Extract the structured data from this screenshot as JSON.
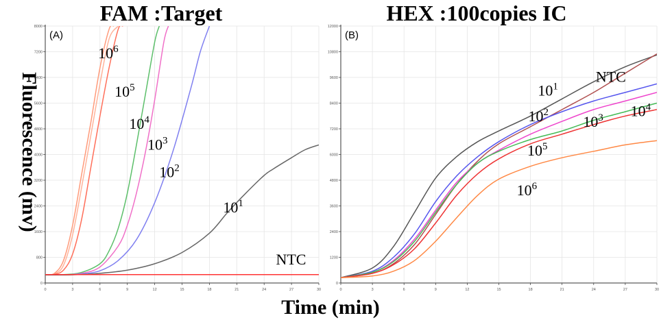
{
  "chart_data": [
    {
      "type": "line",
      "panel_label": "(A)",
      "title": "FAM :Target",
      "xlabel": "Time (min)",
      "ylabel": "Fluorescence (mv)",
      "xlim": [
        0,
        30
      ],
      "ylim": [
        0,
        8000
      ],
      "x_ticks": [
        0,
        3,
        6,
        9,
        12,
        15,
        18,
        21,
        24,
        27,
        30
      ],
      "y_ticks": [
        0,
        800,
        1600,
        2400,
        3200,
        4000,
        4800,
        5600,
        6400,
        7200,
        8000
      ],
      "grid": true,
      "series": [
        {
          "name": "10^6",
          "color": "#ff9a7a",
          "x": [
            0,
            1,
            2,
            3,
            4,
            5,
            6,
            7,
            7.5
          ],
          "y": [
            250,
            300,
            700,
            1800,
            3400,
            5000,
            6700,
            7900,
            8000
          ]
        },
        {
          "name": "10^6",
          "color": "#ffb39a",
          "x": [
            0,
            1,
            2,
            3,
            4,
            5,
            6,
            7,
            8
          ],
          "y": [
            250,
            280,
            550,
            1500,
            3000,
            4600,
            6200,
            7600,
            8000
          ]
        },
        {
          "name": "10^5",
          "color": "#ff6f5a",
          "x": [
            0,
            1,
            2,
            3,
            4,
            5,
            6,
            7,
            8,
            8.5
          ],
          "y": [
            250,
            270,
            400,
            900,
            2000,
            3600,
            5200,
            6700,
            7900,
            8000
          ]
        },
        {
          "name": "10^4",
          "color": "#5cbf6a",
          "x": [
            0,
            2,
            4,
            6,
            7,
            8,
            9,
            10,
            11,
            12,
            12.5
          ],
          "y": [
            250,
            260,
            330,
            600,
            1000,
            1700,
            2800,
            4300,
            5900,
            7500,
            8000
          ]
        },
        {
          "name": "10^3",
          "color": "#f070c8",
          "x": [
            0,
            2,
            4,
            6,
            8,
            9,
            10,
            11,
            12,
            13,
            13.5
          ],
          "y": [
            250,
            255,
            300,
            500,
            1150,
            1800,
            2800,
            4100,
            5700,
            7500,
            8000
          ]
        },
        {
          "name": "10^2",
          "color": "#8080f0",
          "x": [
            0,
            2,
            4,
            6,
            8,
            10,
            12,
            14,
            16,
            17,
            18
          ],
          "y": [
            250,
            255,
            280,
            380,
            700,
            1350,
            2500,
            4100,
            6100,
            7200,
            8000
          ]
        },
        {
          "name": "10^1",
          "color": "#666666",
          "x": [
            0,
            3,
            6,
            9,
            12,
            15,
            18,
            20,
            22,
            24,
            25,
            27,
            28.5,
            30
          ],
          "y": [
            250,
            255,
            300,
            400,
            600,
            950,
            1550,
            2200,
            2800,
            3350,
            3550,
            3900,
            4150,
            4300
          ]
        },
        {
          "name": "NTC",
          "color": "#ff3333",
          "x": [
            0,
            30
          ],
          "y": [
            260,
            260
          ]
        }
      ],
      "series_labels": [
        {
          "base": "10",
          "exp": "6",
          "x": 5.8,
          "y": 7000
        },
        {
          "base": "10",
          "exp": "5",
          "x": 7.6,
          "y": 5800
        },
        {
          "base": "10",
          "exp": "4",
          "x": 9.2,
          "y": 4800
        },
        {
          "base": "10",
          "exp": "3",
          "x": 11.2,
          "y": 4150
        },
        {
          "base": "10",
          "exp": "2",
          "x": 12.5,
          "y": 3300
        },
        {
          "base": "10",
          "exp": "1",
          "x": 19.5,
          "y": 2200
        },
        {
          "base": "NTC",
          "exp": "",
          "x": 25.3,
          "y": 580
        }
      ]
    },
    {
      "type": "line",
      "panel_label": "(B)",
      "title": "HEX :100copies IC",
      "xlabel": "Time (min)",
      "ylabel": "Fluorescence (mv)",
      "xlim": [
        0,
        30
      ],
      "ylim": [
        0,
        12000
      ],
      "x_ticks": [
        0,
        3,
        6,
        9,
        12,
        15,
        18,
        21,
        24,
        27,
        30
      ],
      "y_ticks": [
        0,
        1200,
        2400,
        3600,
        4800,
        6000,
        7200,
        8400,
        9600,
        10800,
        12000
      ],
      "grid": true,
      "series": [
        {
          "name": "10^1",
          "color": "#555555",
          "x": [
            0,
            3,
            5,
            7,
            9,
            11,
            13,
            15,
            18,
            21,
            24,
            27,
            30
          ],
          "y": [
            250,
            700,
            1700,
            3300,
            4900,
            5900,
            6600,
            7100,
            7800,
            8600,
            9400,
            10100,
            10650
          ]
        },
        {
          "name": "NTC",
          "color": "#b05050",
          "x": [
            0,
            3,
            5,
            7,
            9,
            11,
            13,
            15,
            18,
            21,
            24,
            27,
            30
          ],
          "y": [
            250,
            450,
            900,
            1800,
            3200,
            4600,
            5700,
            6500,
            7300,
            8100,
            8900,
            9800,
            10700
          ]
        },
        {
          "name": "10^2",
          "color": "#5555ee",
          "x": [
            0,
            3,
            5,
            7,
            9,
            11,
            13,
            15,
            18,
            21,
            24,
            27,
            30
          ],
          "y": [
            250,
            550,
            1200,
            2300,
            3800,
            5000,
            5900,
            6600,
            7400,
            8000,
            8500,
            8900,
            9300
          ]
        },
        {
          "name": "10^3",
          "color": "#ee44cc",
          "x": [
            0,
            3,
            5,
            7,
            9,
            11,
            13,
            15,
            18,
            21,
            24,
            27,
            30
          ],
          "y": [
            250,
            500,
            1050,
            2050,
            3400,
            4700,
            5600,
            6200,
            6950,
            7550,
            8100,
            8500,
            8900
          ]
        },
        {
          "name": "10^4",
          "color": "#44bb55",
          "x": [
            0,
            3,
            5,
            7,
            9,
            11,
            13,
            15,
            18,
            21,
            24,
            27,
            30
          ],
          "y": [
            250,
            500,
            1000,
            1950,
            3300,
            4600,
            5600,
            6150,
            6700,
            7100,
            7600,
            8000,
            8400
          ]
        },
        {
          "name": "10^5",
          "color": "#ee3333",
          "x": [
            0,
            3,
            5,
            7,
            9,
            11,
            13,
            15,
            18,
            21,
            24,
            27,
            30
          ],
          "y": [
            250,
            450,
            850,
            1600,
            2800,
            4100,
            5100,
            5800,
            6500,
            6950,
            7400,
            7800,
            8100
          ]
        },
        {
          "name": "10^6",
          "color": "#ff8844",
          "x": [
            0,
            3,
            5,
            7,
            9,
            11,
            13,
            15,
            18,
            21,
            24,
            27,
            30
          ],
          "y": [
            250,
            330,
            550,
            1050,
            1950,
            3050,
            4100,
            4850,
            5450,
            5850,
            6150,
            6450,
            6650
          ]
        }
      ],
      "series_labels": [
        {
          "base": "10",
          "exp": "1",
          "x": 18.7,
          "y": 8750
        },
        {
          "base": "NTC",
          "exp": "",
          "x": 24.2,
          "y": 9400
        },
        {
          "base": "10",
          "exp": "2",
          "x": 17.8,
          "y": 7550
        },
        {
          "base": "10",
          "exp": "3",
          "x": 23.0,
          "y": 7300
        },
        {
          "base": "10",
          "exp": "4",
          "x": 27.5,
          "y": 7800
        },
        {
          "base": "10",
          "exp": "5",
          "x": 17.7,
          "y": 5950
        },
        {
          "base": "10",
          "exp": "6",
          "x": 16.7,
          "y": 4100
        }
      ]
    }
  ]
}
